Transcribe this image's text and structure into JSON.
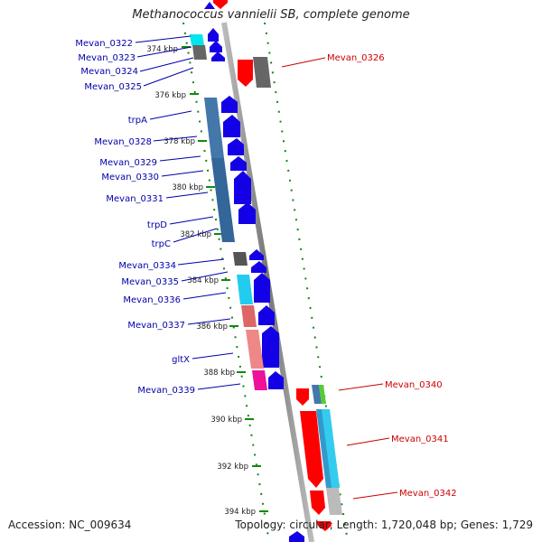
{
  "title": "Methanococcus vannielii SB, complete genome",
  "accession": "Accession: NC_009634",
  "summary": "Topology: circular; Length: 1,720,048 bp; Genes: 1,729",
  "colors": {
    "forward_gene": "#1400e6",
    "reverse_gene": "#ff0000",
    "label_blue": "#0000aa",
    "label_red": "#cc0000",
    "tick_green": "#118811",
    "backbone": "#999999"
  },
  "scale_labels": [
    "374 kbp",
    "376 kbp",
    "378 kbp",
    "380 kbp",
    "382 kbp",
    "384 kbp",
    "386 kbp",
    "388 kbp",
    "390 kbp",
    "392 kbp",
    "394 kbp"
  ],
  "left_genes": [
    "Mevan_0322",
    "Mevan_0323",
    "Mevan_0324",
    "Mevan_0325",
    "trpA",
    "Mevan_0328",
    "Mevan_0329",
    "Mevan_0330",
    "Mevan_0331",
    "trpD",
    "trpC",
    "Mevan_0334",
    "Mevan_0335",
    "Mevan_0336",
    "Mevan_0337",
    "gltX",
    "Mevan_0339"
  ],
  "right_genes": [
    "Mevan_0326",
    "Mevan_0340",
    "Mevan_0341",
    "Mevan_0342"
  ]
}
